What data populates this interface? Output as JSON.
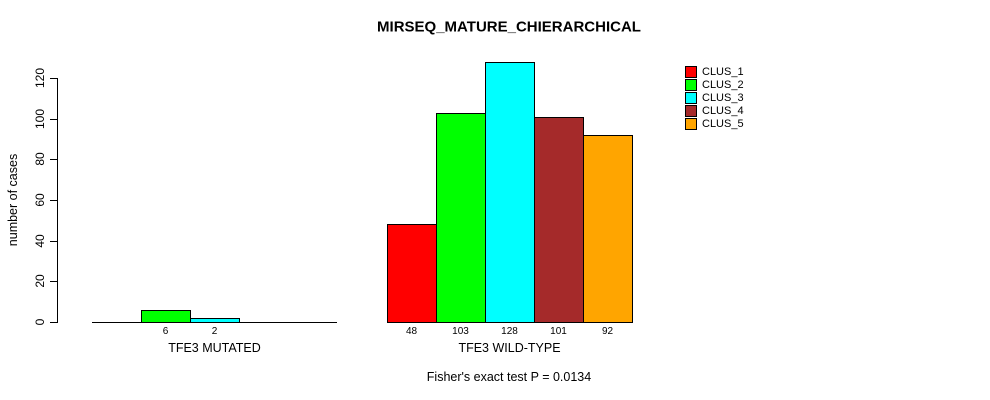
{
  "figure": {
    "title": "MIRSEQ_MATURE_CHIERARCHICAL",
    "ylabel": "number of cases",
    "annotation": "Fisher's exact test P = 0.0134"
  },
  "chart_data": {
    "type": "bar",
    "title": "MIRSEQ_MATURE_CHIERARCHICAL",
    "xlabel": "",
    "ylabel": "number of cases",
    "ylim": [
      0,
      120
    ],
    "yticks": [
      0,
      20,
      40,
      60,
      80,
      100,
      120
    ],
    "grid": false,
    "legend_position": "top-right",
    "categories": [
      "TFE3 MUTATED",
      "TFE3 WILD-TYPE"
    ],
    "series": [
      {
        "name": "CLUS_1",
        "color": "#FF0000",
        "values": [
          0,
          48
        ]
      },
      {
        "name": "CLUS_2",
        "color": "#00FF00",
        "values": [
          6,
          103
        ]
      },
      {
        "name": "CLUS_3",
        "color": "#00FFFF",
        "values": [
          2,
          128
        ]
      },
      {
        "name": "CLUS_4",
        "color": "#A52A2A",
        "values": [
          0,
          101
        ]
      },
      {
        "name": "CLUS_5",
        "color": "#FFA500",
        "values": [
          0,
          92
        ]
      }
    ],
    "bar_value_labels": [
      [
        "",
        "6",
        "2",
        "",
        ""
      ],
      [
        "48",
        "103",
        "128",
        "101",
        "92"
      ]
    ],
    "annotation": "Fisher's exact test P = 0.0134"
  }
}
